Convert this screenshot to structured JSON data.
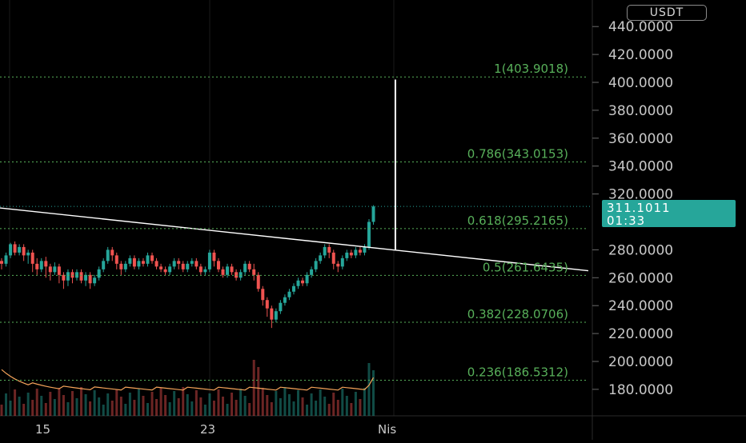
{
  "currency": "USDT",
  "last_price": {
    "value": "311.1011",
    "countdown": "01:33"
  },
  "colors": {
    "up": "#26a69a",
    "down": "#ef5350",
    "fib": "#58b05a",
    "volume_ma": "#f5a35a",
    "background": "#000000"
  },
  "chart_data": {
    "type": "candlestick",
    "y_axis": {
      "ticks": [
        "440.0000",
        "420.0000",
        "400.0000",
        "380.0000",
        "360.0000",
        "340.0000",
        "320.0000",
        "280.0000",
        "260.0000",
        "240.0000",
        "220.0000",
        "200.0000",
        "180.0000"
      ],
      "range": [
        170,
        452
      ]
    },
    "x_axis": {
      "ticks": [
        "15",
        "23",
        "Nis"
      ]
    },
    "fib_levels": [
      {
        "label": "1(403.9018)",
        "value": 403.9018
      },
      {
        "label": "0.786(343.0153)",
        "value": 343.0153
      },
      {
        "label": "0.618(295.2165)",
        "value": 295.2165
      },
      {
        "label": "0.5(261.6435)",
        "value": 261.6435
      },
      {
        "label": "0.382(228.0706)",
        "value": 228.0706
      },
      {
        "label": "0.236(186.5312)",
        "value": 186.5312
      }
    ],
    "trendline": {
      "from": [
        "start",
        310
      ],
      "to": [
        "end",
        265
      ]
    },
    "vertical_measure": {
      "from": 280,
      "to": 402
    },
    "candles": [
      [
        272,
        270,
        274,
        266
      ],
      [
        270,
        276,
        278,
        268
      ],
      [
        276,
        284,
        285,
        274
      ],
      [
        284,
        278,
        286,
        276
      ],
      [
        278,
        282,
        284,
        276
      ],
      [
        282,
        276,
        284,
        272
      ],
      [
        276,
        278,
        280,
        270
      ],
      [
        278,
        270,
        280,
        264
      ],
      [
        270,
        266,
        274,
        262
      ],
      [
        266,
        272,
        274,
        264
      ],
      [
        272,
        268,
        275,
        260
      ],
      [
        268,
        264,
        270,
        258
      ],
      [
        264,
        268,
        271,
        262
      ],
      [
        268,
        262,
        270,
        256
      ],
      [
        262,
        258,
        264,
        252
      ],
      [
        258,
        264,
        266,
        254
      ],
      [
        264,
        260,
        266,
        256
      ],
      [
        260,
        264,
        266,
        258
      ],
      [
        264,
        258,
        266,
        256
      ],
      [
        258,
        262,
        264,
        254
      ],
      [
        262,
        256,
        264,
        252
      ],
      [
        256,
        260,
        262,
        254
      ],
      [
        260,
        266,
        268,
        258
      ],
      [
        266,
        272,
        274,
        264
      ],
      [
        272,
        280,
        282,
        270
      ],
      [
        280,
        276,
        282,
        272
      ],
      [
        276,
        270,
        278,
        266
      ],
      [
        270,
        266,
        272,
        262
      ],
      [
        266,
        270,
        272,
        264
      ],
      [
        270,
        274,
        276,
        268
      ],
      [
        274,
        268,
        276,
        266
      ],
      [
        268,
        272,
        274,
        266
      ],
      [
        272,
        270,
        274,
        268
      ],
      [
        270,
        276,
        278,
        268
      ],
      [
        276,
        272,
        278,
        270
      ],
      [
        272,
        268,
        274,
        266
      ],
      [
        268,
        266,
        270,
        264
      ],
      [
        266,
        264,
        268,
        262
      ],
      [
        264,
        268,
        270,
        262
      ],
      [
        268,
        272,
        274,
        266
      ],
      [
        272,
        270,
        274,
        266
      ],
      [
        270,
        266,
        272,
        264
      ],
      [
        266,
        270,
        272,
        264
      ],
      [
        270,
        272,
        274,
        268
      ],
      [
        272,
        268,
        274,
        266
      ],
      [
        268,
        264,
        270,
        262
      ],
      [
        264,
        266,
        268,
        262
      ],
      [
        266,
        278,
        280,
        264
      ],
      [
        278,
        272,
        280,
        268
      ],
      [
        272,
        266,
        274,
        264
      ],
      [
        266,
        262,
        268,
        260
      ],
      [
        262,
        268,
        270,
        260
      ],
      [
        268,
        264,
        270,
        262
      ],
      [
        264,
        260,
        266,
        258
      ],
      [
        260,
        264,
        266,
        258
      ],
      [
        264,
        270,
        272,
        262
      ],
      [
        270,
        266,
        272,
        264
      ],
      [
        266,
        262,
        270,
        258
      ],
      [
        262,
        252,
        264,
        250
      ],
      [
        252,
        244,
        254,
        240
      ],
      [
        244,
        238,
        246,
        232
      ],
      [
        238,
        230,
        240,
        224
      ],
      [
        230,
        236,
        238,
        228
      ],
      [
        236,
        242,
        244,
        234
      ],
      [
        242,
        246,
        248,
        240
      ],
      [
        246,
        250,
        252,
        244
      ],
      [
        250,
        254,
        256,
        248
      ],
      [
        254,
        258,
        260,
        252
      ],
      [
        258,
        256,
        260,
        254
      ],
      [
        256,
        262,
        264,
        254
      ],
      [
        262,
        266,
        268,
        260
      ],
      [
        266,
        272,
        274,
        264
      ],
      [
        272,
        276,
        278,
        270
      ],
      [
        276,
        282,
        284,
        274
      ],
      [
        282,
        278,
        284,
        274
      ],
      [
        278,
        270,
        280,
        266
      ],
      [
        270,
        268,
        272,
        264
      ],
      [
        268,
        274,
        276,
        266
      ],
      [
        274,
        278,
        280,
        272
      ],
      [
        278,
        276,
        280,
        274
      ],
      [
        276,
        280,
        282,
        274
      ],
      [
        280,
        278,
        282,
        276
      ],
      [
        278,
        282,
        284,
        276
      ],
      [
        282,
        300,
        302,
        280
      ],
      [
        300,
        311,
        312,
        298
      ]
    ]
  }
}
